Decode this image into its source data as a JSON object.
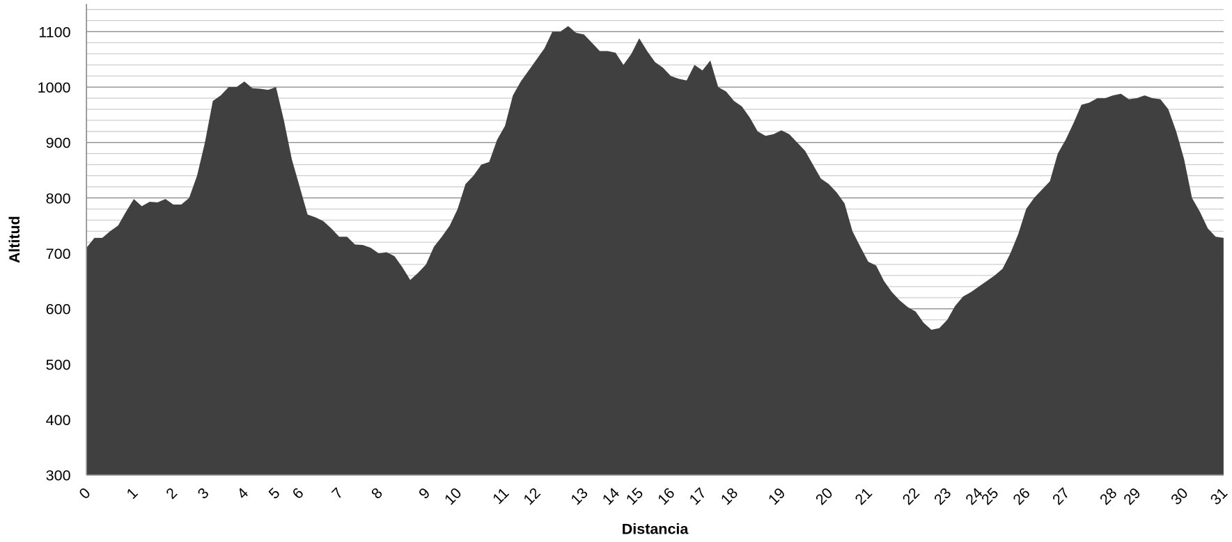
{
  "chart_data": {
    "type": "area",
    "x_label": "Distancia",
    "y_label": "Altitud",
    "categories": [
      "0",
      null,
      null,
      null,
      null,
      null,
      "1",
      null,
      null,
      null,
      null,
      "2",
      null,
      null,
      null,
      "3",
      null,
      null,
      null,
      null,
      "4",
      null,
      null,
      null,
      "5",
      null,
      null,
      "6",
      null,
      null,
      null,
      null,
      "7",
      null,
      null,
      null,
      null,
      "8",
      null,
      null,
      null,
      null,
      null,
      "9",
      null,
      null,
      null,
      "10",
      null,
      null,
      null,
      null,
      null,
      "11",
      null,
      null,
      null,
      "12",
      null,
      null,
      null,
      null,
      null,
      "13",
      null,
      null,
      null,
      "14",
      null,
      null,
      "15",
      null,
      null,
      null,
      "16",
      null,
      null,
      null,
      "17",
      null,
      null,
      null,
      "18",
      null,
      null,
      null,
      null,
      null,
      "19",
      null,
      null,
      null,
      null,
      null,
      "20",
      null,
      null,
      null,
      null,
      "21",
      null,
      null,
      null,
      null,
      null,
      "22",
      null,
      null,
      null,
      "23",
      null,
      null,
      null,
      "24",
      null,
      "25",
      null,
      null,
      null,
      "26",
      null,
      null,
      null,
      null,
      "27",
      null,
      null,
      null,
      null,
      null,
      "28",
      null,
      null,
      "29",
      null,
      null,
      null,
      null,
      null,
      "30",
      null,
      null,
      null,
      null,
      "31"
    ],
    "series": [
      {
        "name": "Altitud",
        "color": "#404040",
        "values": [
          710,
          728,
          728,
          740,
          750,
          775,
          798,
          785,
          793,
          792,
          798,
          788,
          788,
          800,
          840,
          900,
          975,
          985,
          1000,
          1000,
          1010,
          998,
          997,
          995,
          1000,
          940,
          870,
          820,
          770,
          765,
          758,
          745,
          730,
          730,
          716,
          715,
          710,
          700,
          702,
          695,
          675,
          652,
          665,
          680,
          712,
          730,
          750,
          780,
          825,
          840,
          860,
          865,
          905,
          930,
          985,
          1010,
          1030,
          1050,
          1070,
          1100,
          1100,
          1110,
          1098,
          1095,
          1080,
          1065,
          1065,
          1062,
          1040,
          1060,
          1088,
          1065,
          1045,
          1035,
          1020,
          1015,
          1012,
          1040,
          1030,
          1048,
          1000,
          992,
          975,
          965,
          945,
          920,
          912,
          915,
          922,
          915,
          900,
          885,
          860,
          835,
          825,
          810,
          790,
          740,
          712,
          685,
          678,
          650,
          630,
          615,
          603,
          595,
          575,
          562,
          565,
          580,
          605,
          622,
          630,
          640,
          650,
          660,
          672,
          700,
          735,
          780,
          800,
          815,
          830,
          880,
          905,
          935,
          968,
          972,
          980,
          980,
          985,
          988,
          978,
          980,
          985,
          980,
          978,
          960,
          920,
          870,
          800,
          775,
          745,
          730,
          728
        ]
      }
    ],
    "ylim": [
      300,
      1150
    ],
    "yticks": [
      300,
      400,
      500,
      600,
      700,
      800,
      900,
      1000,
      1100
    ],
    "grid": true,
    "minor_divisions": 5
  }
}
